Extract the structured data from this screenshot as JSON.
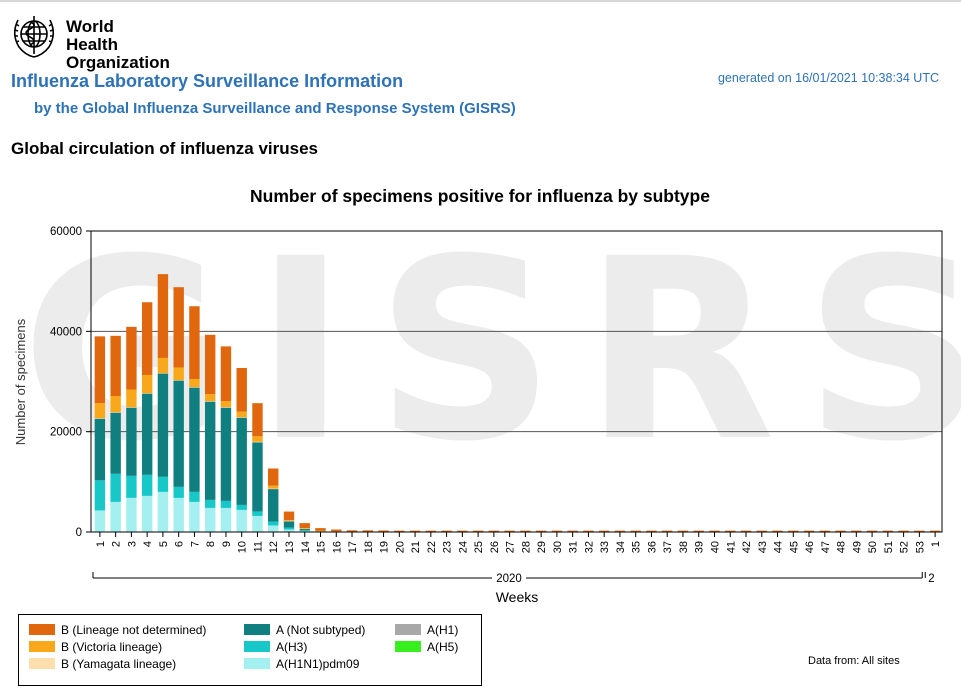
{
  "header": {
    "org_line1": "World Health",
    "org_line2": "Organization",
    "title": "Influenza Laboratory Surveillance Information",
    "subtitle": "by the Global Influenza Surveillance and Response System (GISRS)",
    "generated": "generated on 16/01/2021 10:38:34 UTC",
    "section_title": "Global circulation of influenza viruses"
  },
  "watermark": "GISRS",
  "footer": {
    "data_from": "Data from: All sites"
  },
  "colors": {
    "b_not_determined": "#e0670e",
    "b_victoria": "#f8a81a",
    "b_yamagata": "#fddfae",
    "a_not_subtyped": "#0f7f80",
    "a_h3": "#18c8c8",
    "a_h1n1": "#a4efef",
    "a_h1": "#a8a8a8",
    "a_h5": "#37ef1d"
  },
  "chart_data": {
    "type": "bar",
    "stacked": true,
    "title": "Number of specimens positive for influenza by subtype",
    "xlabel": "Weeks",
    "ylabel": "Number of specimens",
    "ylim": [
      0,
      60000
    ],
    "yticks": [
      "0",
      "20000",
      "40000",
      "60000"
    ],
    "year_label": "2020",
    "next_year_label": "2",
    "categories": [
      "1",
      "2",
      "3",
      "4",
      "5",
      "6",
      "7",
      "8",
      "9",
      "10",
      "11",
      "12",
      "13",
      "14",
      "15",
      "16",
      "17",
      "18",
      "19",
      "20",
      "21",
      "22",
      "23",
      "24",
      "25",
      "26",
      "27",
      "28",
      "29",
      "30",
      "31",
      "32",
      "33",
      "34",
      "35",
      "36",
      "37",
      "38",
      "39",
      "40",
      "41",
      "42",
      "43",
      "44",
      "45",
      "46",
      "47",
      "48",
      "49",
      "50",
      "51",
      "52",
      "53",
      "1"
    ],
    "series": [
      {
        "name": "A(H1N1)pdm09",
        "key": "a_h1n1",
        "values": [
          4300,
          6000,
          6800,
          7200,
          8000,
          6800,
          6000,
          4800,
          4800,
          4400,
          3200,
          1300,
          500,
          200,
          80,
          40,
          20,
          15,
          12,
          10,
          10,
          10,
          10,
          10,
          10,
          10,
          10,
          10,
          10,
          10,
          10,
          10,
          10,
          10,
          10,
          10,
          10,
          10,
          10,
          10,
          10,
          10,
          10,
          10,
          10,
          10,
          10,
          10,
          10,
          10,
          10,
          10,
          10,
          10
        ]
      },
      {
        "name": "A(H3)",
        "key": "a_h3",
        "values": [
          6000,
          5600,
          4400,
          4200,
          3000,
          2200,
          2000,
          1600,
          1400,
          1000,
          900,
          800,
          400,
          200,
          60,
          30,
          15,
          10,
          10,
          8,
          8,
          8,
          8,
          8,
          8,
          8,
          8,
          8,
          8,
          8,
          8,
          8,
          8,
          8,
          8,
          8,
          8,
          8,
          8,
          8,
          8,
          8,
          8,
          8,
          8,
          8,
          8,
          8,
          8,
          8,
          8,
          8,
          8,
          8
        ]
      },
      {
        "name": "A(Not subtyped)",
        "key": "a_not_subtyped",
        "values": [
          12300,
          12200,
          13600,
          16200,
          20600,
          21200,
          20800,
          19600,
          18600,
          17400,
          13800,
          6500,
          1300,
          300,
          100,
          50,
          25,
          15,
          15,
          10,
          10,
          10,
          10,
          10,
          10,
          10,
          10,
          10,
          10,
          10,
          10,
          10,
          10,
          10,
          10,
          10,
          10,
          10,
          10,
          10,
          10,
          10,
          10,
          10,
          10,
          10,
          10,
          10,
          10,
          10,
          10,
          10,
          10,
          10
        ]
      },
      {
        "name": "A(H1)",
        "key": "a_h1",
        "values": [
          0,
          0,
          0,
          0,
          0,
          0,
          0,
          0,
          0,
          0,
          0,
          0,
          0,
          0,
          0,
          0,
          0,
          0,
          0,
          0,
          0,
          0,
          0,
          0,
          0,
          0,
          0,
          0,
          0,
          0,
          0,
          0,
          0,
          0,
          0,
          0,
          0,
          0,
          0,
          0,
          0,
          0,
          0,
          0,
          0,
          0,
          0,
          0,
          0,
          0,
          0,
          0,
          0,
          0
        ]
      },
      {
        "name": "A(H5)",
        "key": "a_h5",
        "values": [
          0,
          0,
          0,
          0,
          0,
          0,
          0,
          0,
          0,
          0,
          0,
          0,
          0,
          0,
          0,
          0,
          0,
          0,
          0,
          0,
          0,
          0,
          0,
          0,
          0,
          0,
          0,
          0,
          0,
          0,
          0,
          0,
          0,
          0,
          0,
          0,
          0,
          0,
          0,
          0,
          0,
          0,
          0,
          0,
          0,
          0,
          0,
          0,
          0,
          0,
          0,
          0,
          0,
          0
        ]
      },
      {
        "name": "B (Yamagata lineage)",
        "key": "b_yamagata",
        "values": [
          100,
          100,
          100,
          100,
          100,
          100,
          100,
          100,
          100,
          100,
          80,
          60,
          20,
          10,
          5,
          5,
          5,
          5,
          5,
          5,
          5,
          5,
          5,
          5,
          5,
          5,
          5,
          5,
          5,
          5,
          5,
          5,
          5,
          5,
          5,
          5,
          5,
          5,
          5,
          5,
          5,
          5,
          5,
          5,
          5,
          5,
          5,
          5,
          5,
          5,
          5,
          5,
          5,
          5
        ]
      },
      {
        "name": "B (Victoria lineage)",
        "key": "b_victoria",
        "values": [
          3000,
          3200,
          3500,
          3600,
          3000,
          2500,
          1600,
          1400,
          1200,
          1100,
          1100,
          600,
          150,
          60,
          30,
          20,
          15,
          10,
          10,
          10,
          10,
          10,
          10,
          10,
          10,
          10,
          10,
          10,
          10,
          10,
          10,
          10,
          10,
          10,
          10,
          10,
          10,
          10,
          10,
          10,
          10,
          10,
          10,
          10,
          10,
          10,
          10,
          10,
          10,
          10,
          10,
          10,
          10,
          10
        ]
      },
      {
        "name": "B (Lineage not determined)",
        "key": "b_not_determined",
        "values": [
          13300,
          12000,
          12500,
          14500,
          16700,
          16000,
          14500,
          11800,
          10900,
          8700,
          6600,
          3400,
          1700,
          1000,
          500,
          350,
          250,
          280,
          250,
          230,
          230,
          230,
          230,
          230,
          230,
          230,
          230,
          230,
          230,
          230,
          230,
          230,
          230,
          230,
          230,
          230,
          230,
          230,
          230,
          230,
          230,
          230,
          230,
          230,
          230,
          230,
          230,
          230,
          230,
          230,
          230,
          230,
          230,
          230
        ]
      }
    ]
  },
  "legend": [
    {
      "label": "B (Lineage not determined)",
      "key": "b_not_determined"
    },
    {
      "label": "B (Victoria lineage)",
      "key": "b_victoria"
    },
    {
      "label": "B (Yamagata lineage)",
      "key": "b_yamagata"
    },
    {
      "label": "A (Not subtyped)",
      "key": "a_not_subtyped"
    },
    {
      "label": "A(H3)",
      "key": "a_h3"
    },
    {
      "label": "A(H1N1)pdm09",
      "key": "a_h1n1"
    },
    {
      "label": "A(H1)",
      "key": "a_h1"
    },
    {
      "label": "A(H5)",
      "key": "a_h5"
    }
  ]
}
